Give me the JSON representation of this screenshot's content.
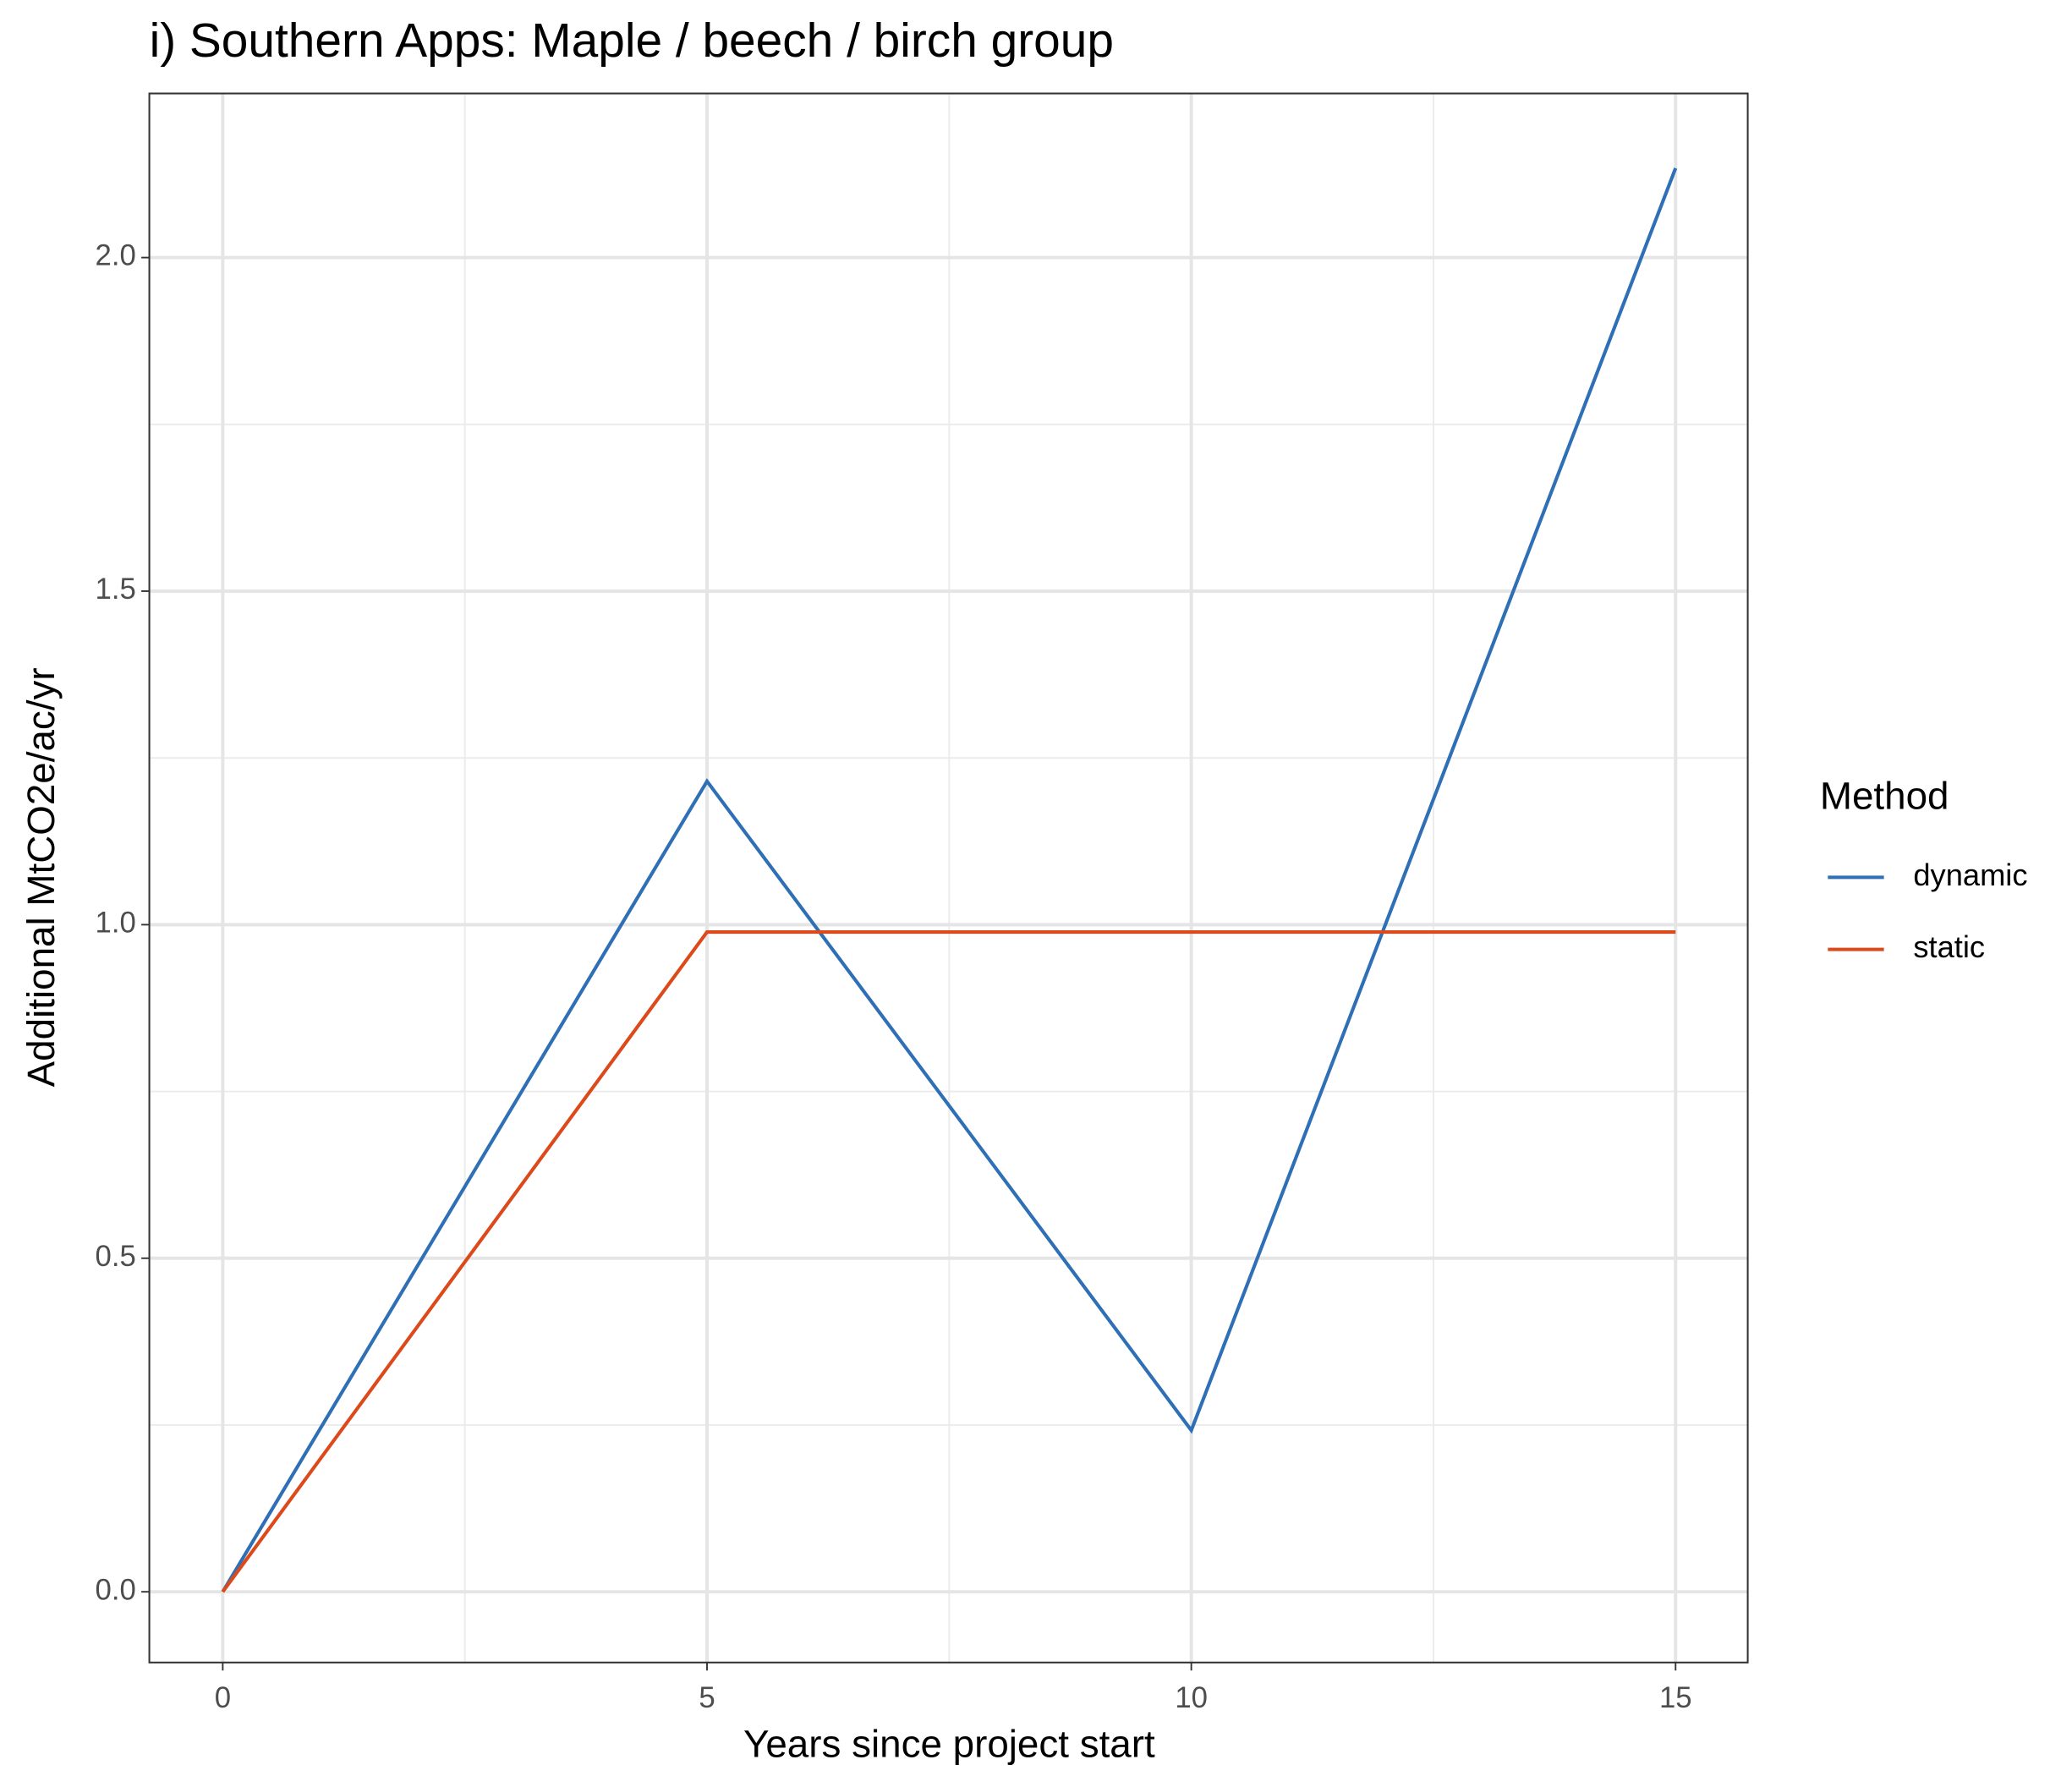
{
  "chart_data": {
    "type": "line",
    "title": "i) Southern Apps: Maple / beech / birch group",
    "x_label": "Years since project start",
    "y_label": "Additional MtCO2e/ac/yr",
    "legend_title": "Method",
    "legend_position": "right",
    "x": [
      0,
      5,
      10,
      15
    ],
    "series": [
      {
        "name": "dynamic",
        "color": "#2e6fb5",
        "values": [
          0,
          1.215,
          0.242,
          2.134
        ]
      },
      {
        "name": "static",
        "color": "#dc4a1c",
        "values": [
          0,
          0.989,
          0.989,
          0.989
        ]
      }
    ],
    "xlim": [
      -0.758,
      15.745
    ],
    "ylim": [
      -0.106,
      2.246
    ],
    "xticks": [
      0,
      5,
      10,
      15
    ],
    "yticks": [
      {
        "value": 0,
        "label": "0.0"
      },
      {
        "value": 0.5,
        "label": "0.5"
      },
      {
        "value": 1,
        "label": "1.0"
      },
      {
        "value": 1.5,
        "label": "1.5"
      },
      {
        "value": 2,
        "label": "2.0"
      }
    ],
    "x_minor_grid": [
      2.5,
      7.5,
      12.5
    ],
    "y_minor_grid": [
      0.25,
      0.75,
      1.25,
      1.75
    ],
    "grid": true
  }
}
